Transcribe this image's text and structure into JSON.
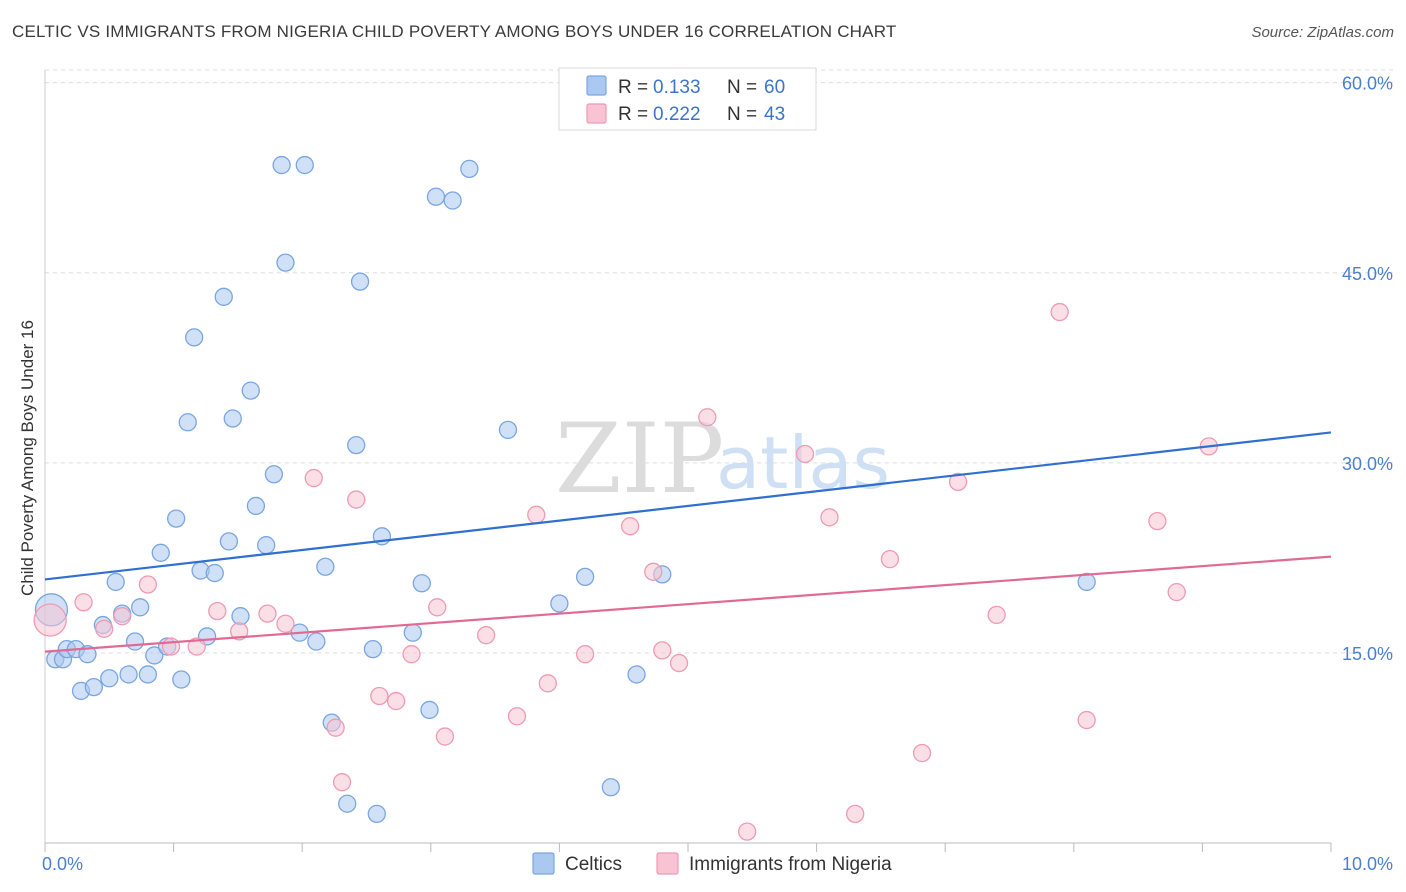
{
  "title": "CELTIC VS IMMIGRANTS FROM NIGERIA CHILD POVERTY AMONG BOYS UNDER 16 CORRELATION CHART",
  "source": "Source: ZipAtlas.com",
  "watermark": {
    "zip": "ZIP",
    "atlas": "atlas"
  },
  "colors": {
    "celtic_fill": "#aac8f0",
    "celtic_stroke": "#7aa6e0",
    "celtic_line": "#2f6fd0",
    "nigeria_fill": "#f8c4d4",
    "nigeria_stroke": "#ee9ab4",
    "nigeria_line": "#e06a94",
    "grid": "#dddddd",
    "axis_text": "#4a7fd0"
  },
  "legend": {
    "rows": [
      {
        "r_label": "R =",
        "r_value": "0.133",
        "n_label": "N =",
        "n_value": "60"
      },
      {
        "r_label": "R =",
        "r_value": "0.222",
        "n_label": "N =",
        "n_value": "43"
      }
    ]
  },
  "bottom_legend": [
    "Celtics",
    "Immigrants from Nigeria"
  ],
  "chart_data": {
    "type": "scatter",
    "xlabel": "",
    "ylabel": "Child Poverty Among Boys Under 16",
    "xlim": [
      0,
      10
    ],
    "ylim": [
      0,
      61
    ],
    "x_tick_labels": [
      "0.0%",
      "10.0%"
    ],
    "y_ticks": [
      15,
      30,
      45,
      60
    ],
    "y_tick_labels": [
      "15.0%",
      "30.0%",
      "45.0%",
      "60.0%"
    ],
    "legend_position": "top-center",
    "grid": true,
    "series": [
      {
        "name": "Celtics",
        "trend": [
          [
            0,
            20.8
          ],
          [
            10,
            32.4
          ]
        ],
        "points": [
          [
            0.05,
            18.4,
            "big"
          ],
          [
            0.08,
            14.5
          ],
          [
            0.14,
            14.5
          ],
          [
            0.17,
            15.3
          ],
          [
            0.24,
            15.3
          ],
          [
            0.28,
            12.0
          ],
          [
            0.33,
            14.9
          ],
          [
            0.38,
            12.3
          ],
          [
            0.45,
            17.2
          ],
          [
            0.5,
            13.0
          ],
          [
            0.55,
            20.6
          ],
          [
            0.6,
            18.1
          ],
          [
            0.65,
            13.3
          ],
          [
            0.7,
            15.9
          ],
          [
            0.74,
            18.6
          ],
          [
            0.8,
            13.3
          ],
          [
            0.85,
            14.8
          ],
          [
            0.9,
            22.9
          ],
          [
            0.95,
            15.5
          ],
          [
            1.02,
            25.6
          ],
          [
            1.06,
            12.9
          ],
          [
            1.11,
            33.2
          ],
          [
            1.16,
            39.9
          ],
          [
            1.21,
            21.5
          ],
          [
            1.26,
            16.3
          ],
          [
            1.32,
            21.3
          ],
          [
            1.39,
            43.1
          ],
          [
            1.43,
            23.8
          ],
          [
            1.46,
            33.5
          ],
          [
            1.52,
            17.9
          ],
          [
            1.6,
            35.7
          ],
          [
            1.64,
            26.6
          ],
          [
            1.72,
            23.5
          ],
          [
            1.78,
            29.1
          ],
          [
            1.84,
            53.5
          ],
          [
            1.87,
            45.8
          ],
          [
            1.98,
            16.6
          ],
          [
            2.02,
            53.5
          ],
          [
            2.11,
            15.9
          ],
          [
            2.18,
            21.8
          ],
          [
            2.23,
            9.5
          ],
          [
            2.35,
            3.1
          ],
          [
            2.42,
            31.4
          ],
          [
            2.45,
            44.3
          ],
          [
            2.55,
            15.3
          ],
          [
            2.58,
            2.3
          ],
          [
            2.62,
            24.2
          ],
          [
            2.86,
            16.6
          ],
          [
            2.93,
            20.5
          ],
          [
            2.99,
            10.5
          ],
          [
            3.04,
            51.0
          ],
          [
            3.17,
            50.7
          ],
          [
            3.3,
            53.2
          ],
          [
            3.6,
            32.6
          ],
          [
            4.0,
            18.9
          ],
          [
            4.2,
            21.0
          ],
          [
            4.4,
            4.4
          ],
          [
            4.6,
            13.3
          ],
          [
            4.8,
            21.2
          ],
          [
            8.1,
            20.6
          ]
        ]
      },
      {
        "name": "Immigrants from Nigeria",
        "trend": [
          [
            0,
            15.1
          ],
          [
            10,
            22.6
          ]
        ],
        "points": [
          [
            0.04,
            17.6,
            "big"
          ],
          [
            0.3,
            19.0
          ],
          [
            0.46,
            16.9
          ],
          [
            0.6,
            17.9
          ],
          [
            0.8,
            20.4
          ],
          [
            0.98,
            15.5
          ],
          [
            1.18,
            15.5
          ],
          [
            1.34,
            18.3
          ],
          [
            1.51,
            16.7
          ],
          [
            1.73,
            18.1
          ],
          [
            1.87,
            17.3
          ],
          [
            2.09,
            28.8
          ],
          [
            2.26,
            9.1
          ],
          [
            2.31,
            4.8
          ],
          [
            2.42,
            27.1
          ],
          [
            2.6,
            11.6
          ],
          [
            2.73,
            11.2
          ],
          [
            2.85,
            14.9
          ],
          [
            3.05,
            18.6
          ],
          [
            3.11,
            8.4
          ],
          [
            3.43,
            16.4
          ],
          [
            3.67,
            10.0
          ],
          [
            3.82,
            25.9
          ],
          [
            3.91,
            12.6
          ],
          [
            4.2,
            14.9
          ],
          [
            4.55,
            25.0
          ],
          [
            4.73,
            21.4
          ],
          [
            4.8,
            15.2
          ],
          [
            4.93,
            14.2
          ],
          [
            5.15,
            33.6
          ],
          [
            5.46,
            0.9
          ],
          [
            5.91,
            30.7
          ],
          [
            6.1,
            25.7
          ],
          [
            6.3,
            2.3
          ],
          [
            6.57,
            22.4
          ],
          [
            6.82,
            7.1
          ],
          [
            7.1,
            28.5
          ],
          [
            7.4,
            18.0
          ],
          [
            7.89,
            41.9
          ],
          [
            8.1,
            9.7
          ],
          [
            8.65,
            25.4
          ],
          [
            8.8,
            19.8
          ],
          [
            9.05,
            31.3
          ]
        ]
      }
    ]
  }
}
